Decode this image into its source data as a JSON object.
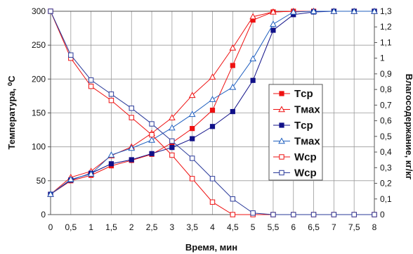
{
  "chart_data": {
    "type": "line",
    "xlabel": "Время, мин",
    "ylabel_left": "Температура, ⁰C",
    "ylabel_right": "Влагосодержание, кг/кг",
    "x_ticks": [
      "0",
      "0,5",
      "1",
      "1,5",
      "2",
      "2,5",
      "3",
      "3,5",
      "4",
      "4,5",
      "5",
      "5,5",
      "6",
      "6,5",
      "7",
      "7,5",
      "8"
    ],
    "y_left_ticks": [
      "0",
      "50",
      "100",
      "150",
      "200",
      "250",
      "300"
    ],
    "y_right_ticks": [
      "0",
      "0,1",
      "0,2",
      "0,3",
      "0,4",
      "0,5",
      "0,6",
      "0,7",
      "0,8",
      "0,9",
      "1",
      "1,1",
      "1,2",
      "1,3"
    ],
    "xlim": [
      0,
      8
    ],
    "ylim_left": [
      0,
      300
    ],
    "ylim_right": [
      0,
      1.3
    ],
    "grid": true,
    "legend_position": "right",
    "x": [
      0,
      0.5,
      1,
      1.5,
      2,
      2.5,
      3,
      3.5,
      4,
      4.5,
      5,
      5.5,
      6,
      6.5,
      7,
      7.5,
      8
    ],
    "series": [
      {
        "name": "Tср",
        "axis": "left",
        "color": "#ee1111",
        "marker": "square-filled",
        "values": [
          30,
          50,
          58,
          72,
          80,
          89,
          106,
          127,
          154,
          220,
          287,
          299,
          300,
          300,
          300,
          300,
          300
        ]
      },
      {
        "name": "Tмах",
        "axis": "left",
        "color": "#ee1111",
        "marker": "triangle-open",
        "values": [
          30,
          55,
          64,
          87,
          100,
          120,
          143,
          176,
          203,
          246,
          292,
          299,
          300,
          300,
          300,
          300,
          300
        ]
      },
      {
        "name": "Tср",
        "axis": "left",
        "color": "#101088",
        "marker": "square-filled",
        "values": [
          30,
          51,
          61,
          75,
          81,
          90,
          99,
          112,
          130,
          152,
          198,
          272,
          295,
          299,
          300,
          300,
          300
        ]
      },
      {
        "name": "Tмах",
        "axis": "left",
        "color": "#1f5fbf",
        "marker": "triangle-open",
        "values": [
          30,
          52,
          60,
          88,
          98,
          110,
          128,
          148,
          170,
          188,
          230,
          281,
          299,
          300,
          300,
          300,
          300
        ]
      },
      {
        "name": "Wср",
        "axis": "right",
        "color": "#ee1111",
        "marker": "square-open",
        "values": [
          1.3,
          1.0,
          0.82,
          0.73,
          0.62,
          0.51,
          0.38,
          0.23,
          0.08,
          0.0,
          0.0,
          0.0,
          0.0,
          0.0,
          0.0,
          0.0,
          0.0
        ]
      },
      {
        "name": "Wср",
        "axis": "right",
        "color": "#2a3a9a",
        "marker": "square-open",
        "values": [
          1.3,
          1.02,
          0.86,
          0.77,
          0.68,
          0.58,
          0.47,
          0.36,
          0.23,
          0.1,
          0.01,
          0.0,
          0.0,
          0.0,
          0.0,
          0.0,
          0.0
        ]
      }
    ]
  }
}
